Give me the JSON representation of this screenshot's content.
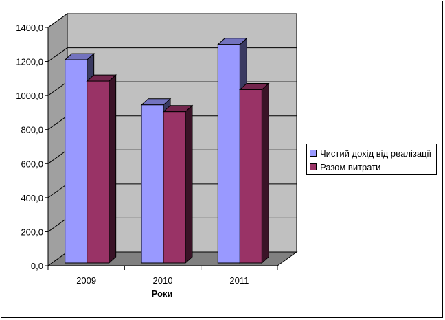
{
  "chart_data": {
    "type": "bar",
    "title": "",
    "xlabel": "Роки",
    "ylabel": "",
    "categories": [
      "2009",
      "2010",
      "2011"
    ],
    "ylim": [
      0,
      1400
    ],
    "y_ticks": [
      "0,0",
      "200,0",
      "400,0",
      "600,0",
      "800,0",
      "1000,0",
      "1200,0",
      "1400,0"
    ],
    "grid": true,
    "three_d": true,
    "legend_position": "right",
    "series": [
      {
        "name": "Чистий дохід від реалізації",
        "values": [
          1210,
          945,
          1300
        ],
        "color": "#9999ff"
      },
      {
        "name": "Разом витрати",
        "values": [
          1085,
          905,
          1035
        ],
        "color": "#993366"
      }
    ]
  },
  "colors": {
    "wall": "#c0c0c0",
    "floor": "#808080",
    "wall_side": "#a0a0a0"
  }
}
